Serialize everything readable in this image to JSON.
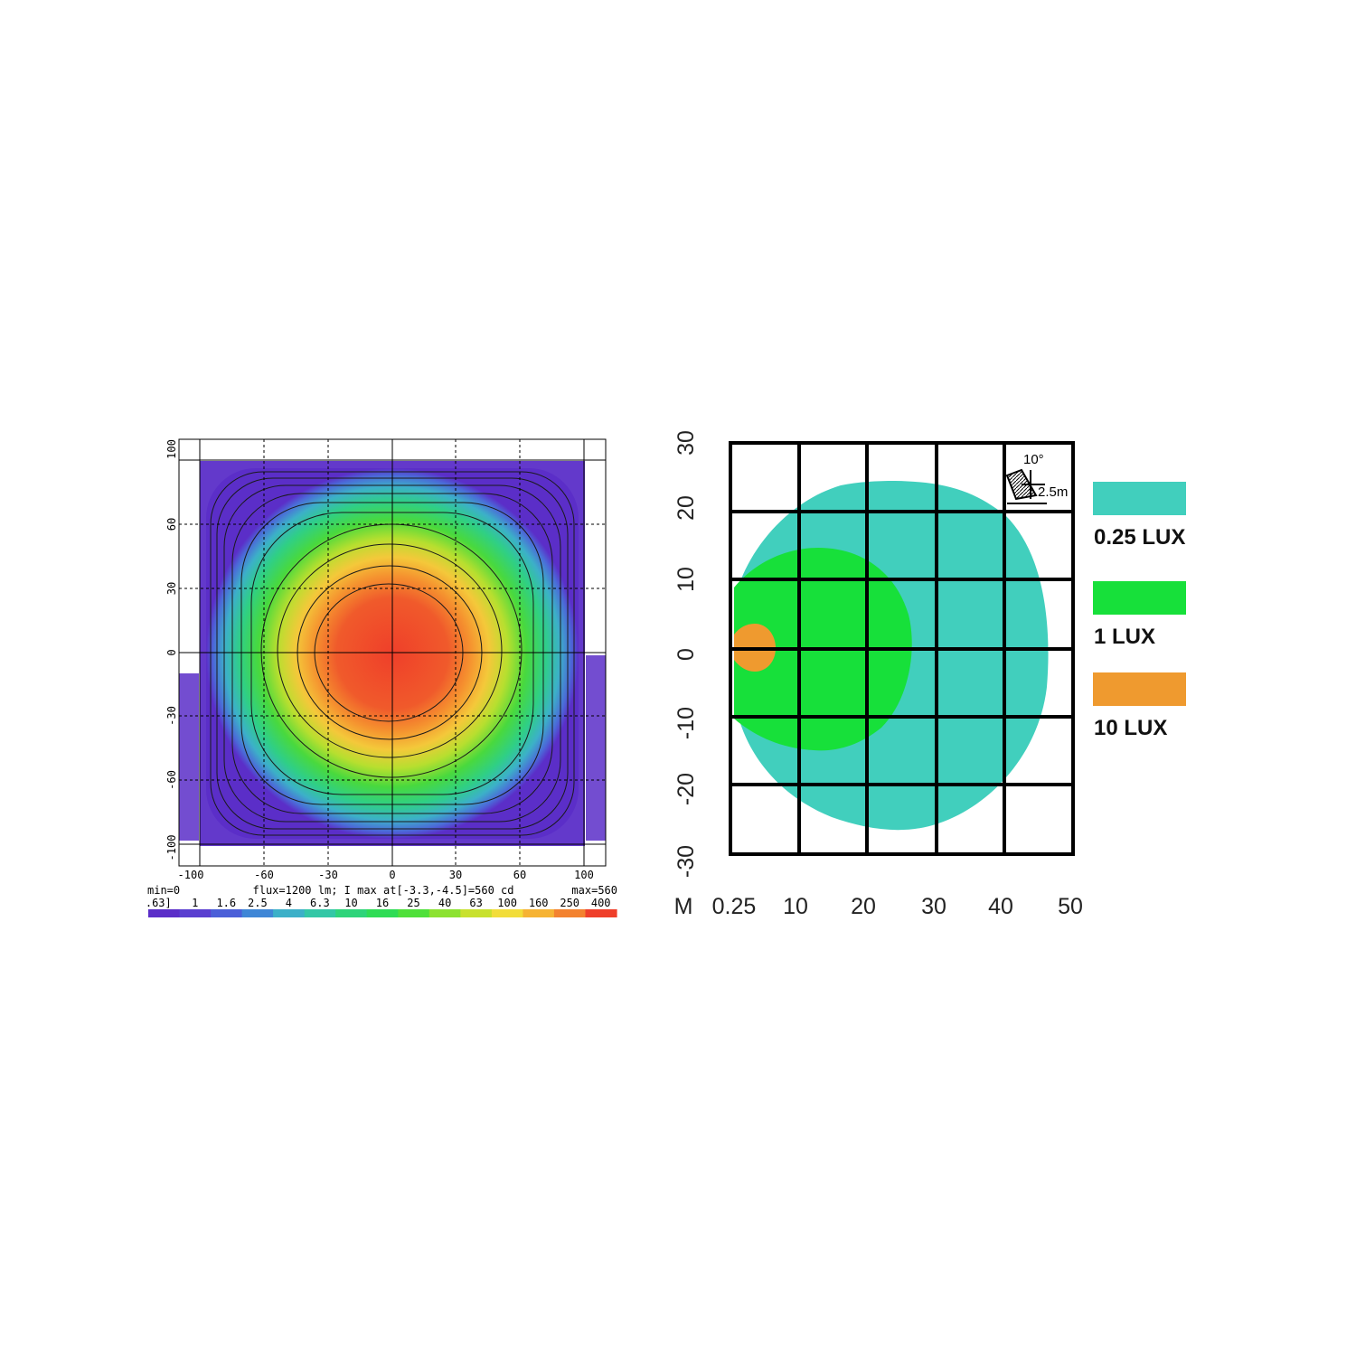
{
  "chart_data": [
    {
      "type": "heatmap",
      "x_ticks": [
        "-100",
        "-60",
        "-30",
        "0",
        "30",
        "60",
        "100"
      ],
      "y_ticks": [
        "100",
        "60",
        "30",
        "0",
        "-30",
        "-60",
        "-100"
      ],
      "xlim": [
        -100,
        100
      ],
      "ylim": [
        -100,
        100
      ],
      "grid": true,
      "peak": [
        -3.3,
        -4.5
      ],
      "info": {
        "min_label": "min=0",
        "flux_label": "flux=1200 lm; I max at[-3.3,-4.5]=560 cd",
        "max_label": "max=560"
      },
      "colorbar": {
        "levels": [
          ".63]",
          "1",
          "1.6",
          "2.5",
          "4",
          "6.3",
          "10",
          "16",
          "25",
          "40",
          "63",
          "100",
          "160",
          "250",
          "400"
        ],
        "colors": [
          "#5b2ec8",
          "#5a3fd0",
          "#4b5fd8",
          "#3f86d6",
          "#3cb0c8",
          "#33c7a6",
          "#2ed47a",
          "#2fdc55",
          "#4fe03a",
          "#8ce231",
          "#c8e12e",
          "#f2dd3a",
          "#f6b334",
          "#f3822f",
          "#ef3f2a"
        ]
      }
    },
    {
      "type": "area",
      "x_ticks": [
        "0.25",
        "10",
        "20",
        "30",
        "40",
        "50"
      ],
      "x_unit_label": "M",
      "y_ticks": [
        "30",
        "20",
        "10",
        "0",
        "-10",
        "-20",
        "-30"
      ],
      "xlim": [
        0,
        50
      ],
      "ylim": [
        -30,
        30
      ],
      "grid": true,
      "inset": {
        "angle": "10°",
        "height": "2.5m"
      },
      "series": [
        {
          "name": "0.25 LUX",
          "color": "#41cfbd",
          "x_range": [
            0.3,
            46
          ],
          "y_range": [
            -26,
            25
          ]
        },
        {
          "name": "1 LUX",
          "color": "#17e03a",
          "x_range": [
            0.3,
            26.5
          ],
          "y_range": [
            -15,
            15
          ]
        },
        {
          "name": "10 LUX",
          "color": "#ef9a2f",
          "x_range": [
            0.3,
            6.5
          ],
          "y_range": [
            -3.5,
            3.5
          ]
        }
      ]
    }
  ]
}
